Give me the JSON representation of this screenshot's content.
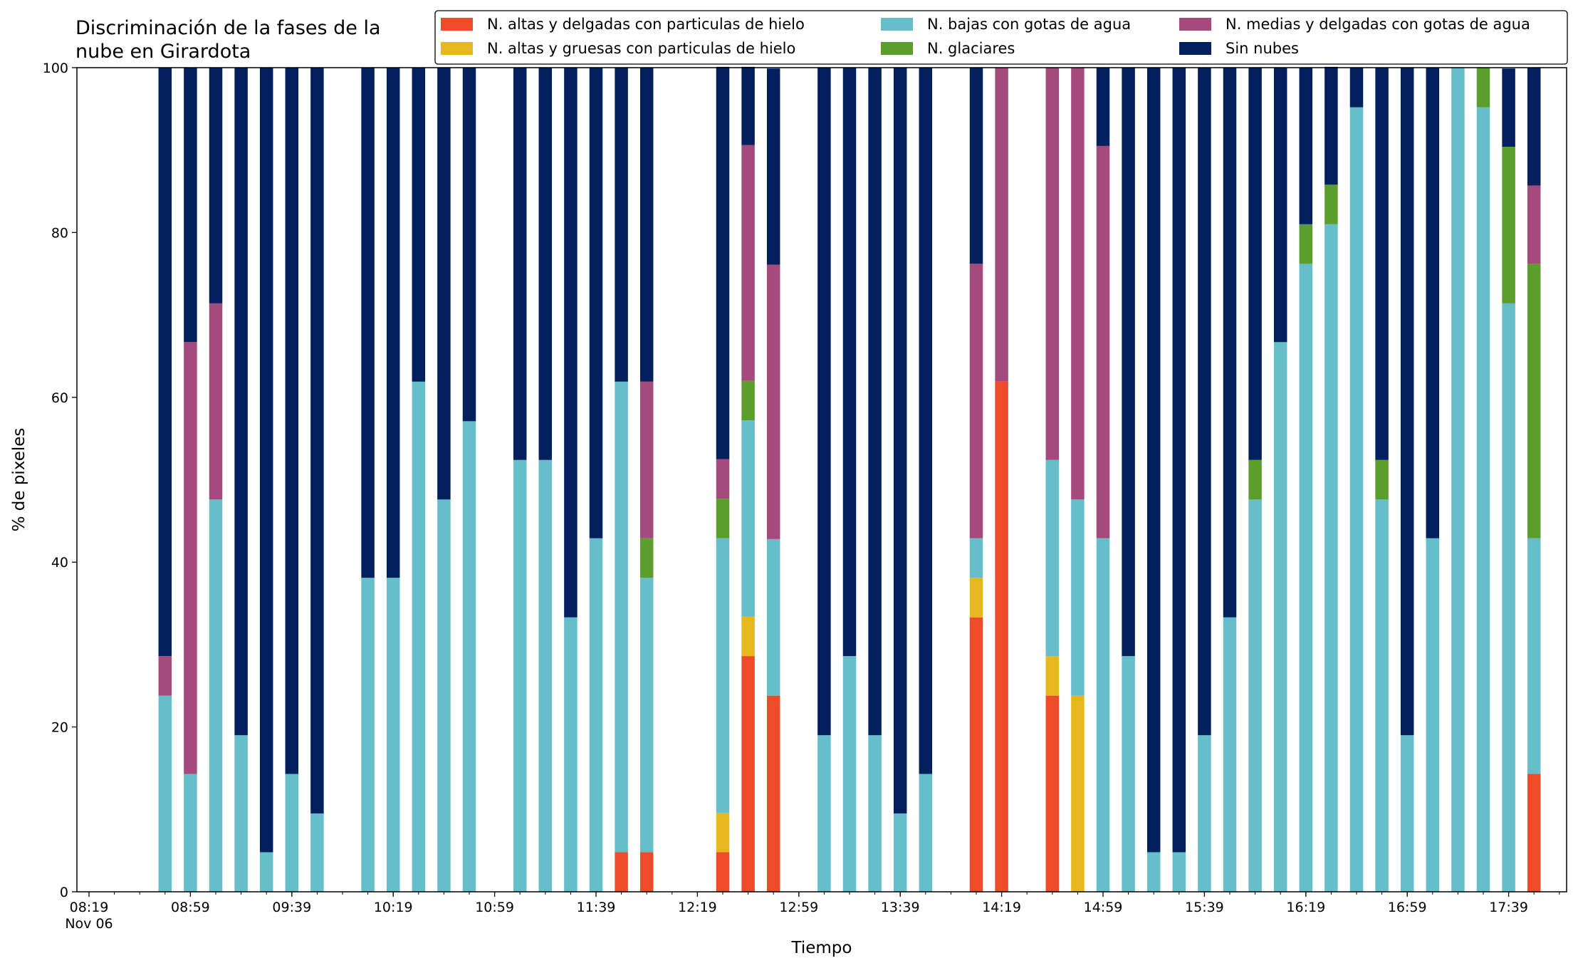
{
  "chart_data": {
    "type": "bar",
    "stacked": true,
    "title": "Discriminación de la fases de la\nnube en Girardota",
    "xlabel": "Tiempo",
    "ylabel": "% de pixeles",
    "ylim": [
      0,
      100
    ],
    "yticks": [
      0,
      20,
      40,
      60,
      80,
      100
    ],
    "grid": false,
    "legend_position": "top-right",
    "x_start": "08:19",
    "x_interval_minutes": 10,
    "x_end": "17:59",
    "x_tick_labels": [
      "08:19\nNov 06",
      "08:59",
      "09:39",
      "10:19",
      "10:59",
      "11:39",
      "12:19",
      "12:59",
      "13:39",
      "14:19",
      "14:59",
      "15:39",
      "16:19",
      "16:59",
      "17:39"
    ],
    "categories": [
      "08:49",
      "08:59",
      "09:09",
      "09:19",
      "09:29",
      "09:39",
      "09:49",
      "10:09",
      "10:19",
      "10:29",
      "10:39",
      "10:49",
      "11:09",
      "11:19",
      "11:29",
      "11:39",
      "11:49",
      "11:59",
      "12:29",
      "12:39",
      "12:49",
      "13:09",
      "13:19",
      "13:29",
      "13:39",
      "13:49",
      "14:09",
      "14:19",
      "14:39",
      "14:49",
      "14:59",
      "15:09",
      "15:19",
      "15:29",
      "15:39",
      "15:49",
      "15:59",
      "16:09",
      "16:19",
      "16:29",
      "16:39",
      "16:49",
      "16:59",
      "17:09",
      "17:19",
      "17:29",
      "17:39",
      "17:49"
    ],
    "series": [
      {
        "name": "N. altas y delgadas con particulas de hielo",
        "color": "#ee4b2b",
        "values": [
          0,
          0,
          0,
          0,
          0,
          0,
          0,
          0,
          0,
          0,
          0,
          0,
          0,
          0,
          0,
          0,
          4.8,
          4.8,
          4.8,
          28.6,
          23.8,
          0,
          0,
          0,
          0,
          0,
          33.3,
          61.9,
          23.8,
          0,
          0,
          0,
          0,
          0,
          0,
          0,
          0,
          0,
          0,
          0,
          0,
          0,
          0,
          0,
          0,
          0,
          0,
          14.3
        ]
      },
      {
        "name": "N. altas y gruesas con particulas de hielo",
        "color": "#e6b81e",
        "values": [
          0,
          0,
          0,
          0,
          0,
          0,
          0,
          0,
          0,
          0,
          0,
          0,
          0,
          0,
          0,
          0,
          0,
          0,
          4.8,
          4.8,
          0,
          0,
          0,
          0,
          0,
          0,
          4.8,
          0,
          4.8,
          23.8,
          0,
          0,
          0,
          0,
          0,
          0,
          0,
          0,
          0,
          0,
          0,
          0,
          0,
          0,
          0,
          0,
          0,
          0
        ]
      },
      {
        "name": "N. bajas con gotas de agua",
        "color": "#66becb",
        "values": [
          23.8,
          14.3,
          47.6,
          19.0,
          4.8,
          14.3,
          9.5,
          38.1,
          38.1,
          61.9,
          47.6,
          57.1,
          52.4,
          52.4,
          33.3,
          42.9,
          57.1,
          33.3,
          33.3,
          23.8,
          19.0,
          19.0,
          28.6,
          19.0,
          9.5,
          14.3,
          4.8,
          0,
          23.8,
          23.8,
          42.9,
          28.6,
          4.8,
          4.8,
          19.0,
          33.3,
          47.6,
          66.7,
          76.2,
          81.0,
          95.2,
          47.6,
          19.0,
          42.9,
          100,
          95.2,
          71.4,
          28.6
        ]
      },
      {
        "name": "N. glaciares",
        "color": "#5b9e2c",
        "values": [
          0,
          0,
          0,
          0,
          0,
          0,
          0,
          0,
          0,
          0,
          0,
          0,
          0,
          0,
          0,
          0,
          0,
          4.8,
          4.8,
          4.8,
          0,
          0,
          0,
          0,
          0,
          0,
          0,
          0,
          0,
          0,
          0,
          0,
          0,
          0,
          0,
          0,
          4.8,
          0,
          4.8,
          4.8,
          0,
          4.8,
          0,
          0,
          0,
          4.8,
          19.0,
          33.3
        ]
      },
      {
        "name": "N. medias y delgadas con gotas de agua",
        "color": "#a44a7d",
        "values": [
          4.8,
          52.4,
          23.8,
          0,
          0,
          0,
          0,
          0,
          0,
          0,
          0,
          0,
          0,
          0,
          0,
          0,
          0,
          19.0,
          4.8,
          28.6,
          33.3,
          0,
          0,
          0,
          0,
          0,
          33.3,
          38.1,
          47.6,
          52.4,
          47.6,
          0,
          0,
          0,
          0,
          0,
          0,
          0,
          0,
          0,
          0,
          0,
          0,
          0,
          0,
          0,
          0,
          9.5
        ]
      },
      {
        "name": "Sin nubes",
        "color": "#03205e",
        "values": [
          71.4,
          33.3,
          28.6,
          81.0,
          95.2,
          85.7,
          90.5,
          61.9,
          61.9,
          38.1,
          52.4,
          42.9,
          47.6,
          47.6,
          66.7,
          57.1,
          38.1,
          38.1,
          47.6,
          9.5,
          23.8,
          81.0,
          71.4,
          81.0,
          90.5,
          85.7,
          23.8,
          0,
          0,
          0,
          9.5,
          71.4,
          95.2,
          95.2,
          81.0,
          66.7,
          47.6,
          33.3,
          19.0,
          14.3,
          4.8,
          47.6,
          81.0,
          57.1,
          0,
          0,
          9.5,
          14.3
        ]
      }
    ]
  }
}
